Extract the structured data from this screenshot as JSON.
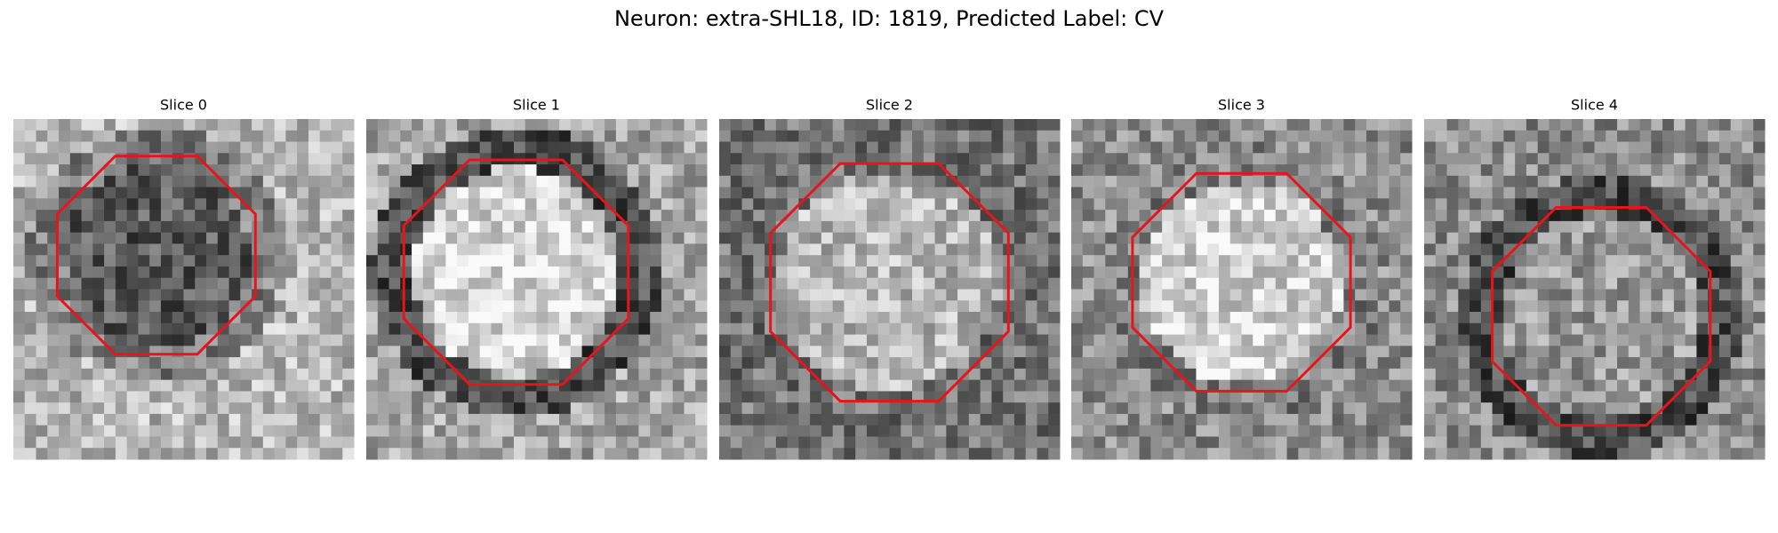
{
  "title": "Neuron: extra-SHL18, ID: 1819, Predicted Label: CV",
  "panels": [
    {
      "title": "Slice 0"
    },
    {
      "title": "Slice 1"
    },
    {
      "title": "Slice 2"
    },
    {
      "title": "Slice 3"
    },
    {
      "title": "Slice 4"
    }
  ]
}
